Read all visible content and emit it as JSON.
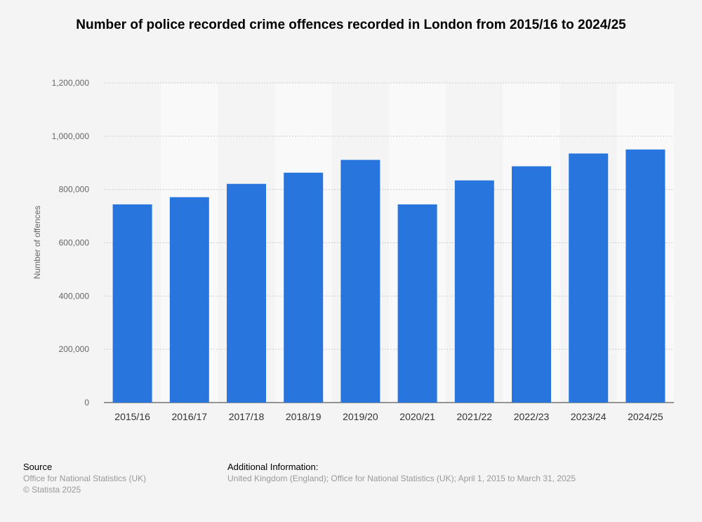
{
  "chart_data": {
    "type": "bar",
    "title": "Number of police recorded crime offences recorded in London from 2015/16 to 2024/25",
    "xlabel": "",
    "ylabel": "Number of offences",
    "ylim": [
      0,
      1200000
    ],
    "yticks": [
      0,
      200000,
      400000,
      600000,
      800000,
      1000000,
      1200000
    ],
    "ytick_labels": [
      "0",
      "200,000",
      "400,000",
      "600,000",
      "800,000",
      "1,000,000",
      "1,200,000"
    ],
    "grid": true,
    "categories": [
      "2015/16",
      "2016/17",
      "2017/18",
      "2018/19",
      "2019/20",
      "2020/21",
      "2021/22",
      "2022/23",
      "2023/24",
      "2024/25"
    ],
    "values": [
      744000,
      771000,
      821000,
      863000,
      911000,
      744000,
      834000,
      887000,
      935000,
      950000
    ],
    "bar_color": "#2876dd"
  },
  "footer": {
    "source_heading": "Source",
    "source_text": "Office for National Statistics (UK)",
    "copyright": "© Statista 2025",
    "info_heading": "Additional Information:",
    "info_text": "United Kingdom (England); Office for National Statistics (UK); April 1, 2015 to March 31, 2025"
  }
}
